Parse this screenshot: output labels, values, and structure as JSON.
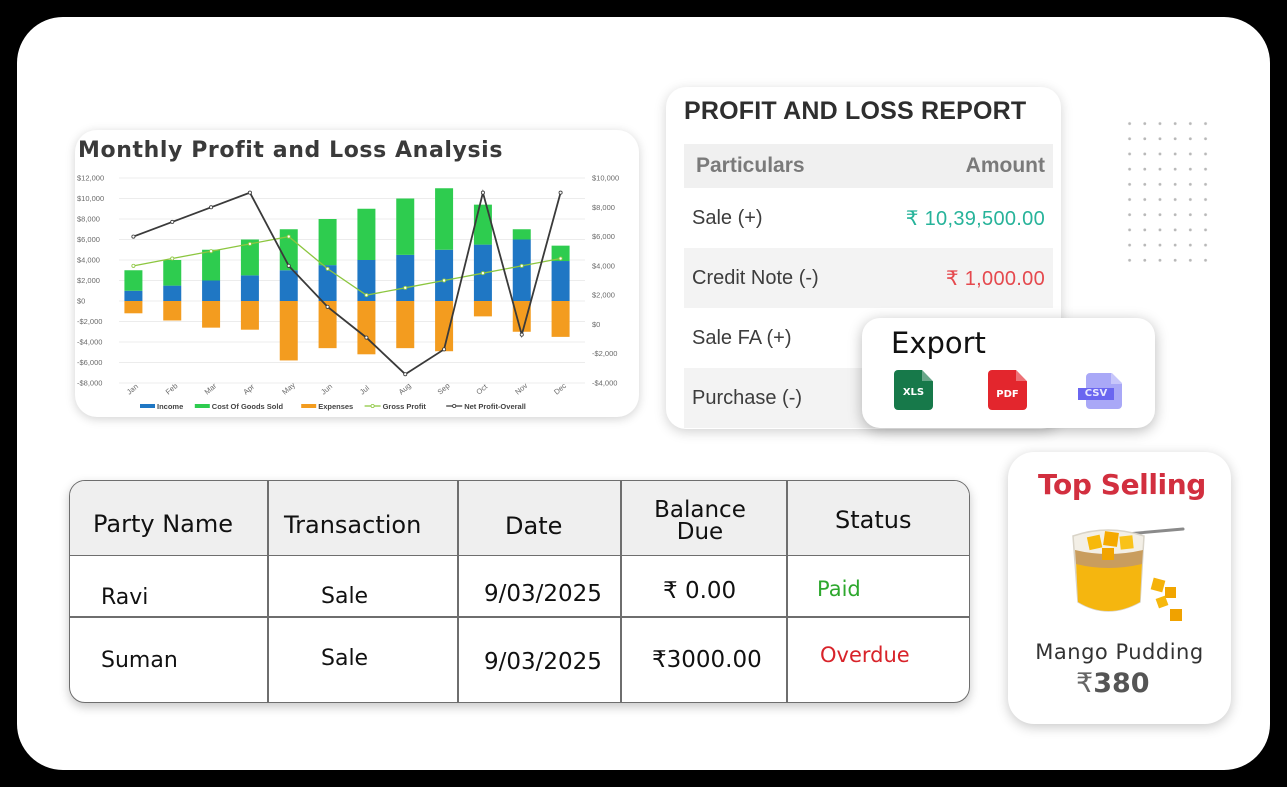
{
  "chart_card": {
    "title": "Monthly Profit and Loss Analysis"
  },
  "chart_data": {
    "type": "bar",
    "title": "Monthly Profit and Loss Analysis",
    "categories": [
      "Jan",
      "Feb",
      "Mar",
      "Apr",
      "May",
      "Jun",
      "Jul",
      "Aug",
      "Sep",
      "Oct",
      "Nov",
      "Dec"
    ],
    "stacked": true,
    "series": [
      {
        "name": "Income",
        "type": "bar",
        "axis": "left",
        "color": "#1f77c4",
        "values": [
          1000,
          1500,
          2000,
          2500,
          3000,
          3500,
          4000,
          4500,
          5000,
          5500,
          6000,
          3900
        ]
      },
      {
        "name": "Cost Of Goods Sold",
        "type": "bar",
        "axis": "left",
        "color": "#2ecc4f",
        "values": [
          2000,
          2500,
          3000,
          3500,
          4000,
          4500,
          5000,
          5500,
          6000,
          3900,
          1000,
          1500
        ]
      },
      {
        "name": "Expenses",
        "type": "bar",
        "axis": "left",
        "color": "#f39c1f",
        "values": [
          -1200,
          -1900,
          -2600,
          -2800,
          -5800,
          -4600,
          -5200,
          -4600,
          -4900,
          -1500,
          -3000,
          -3500
        ]
      },
      {
        "name": "Gross Profit",
        "type": "line",
        "axis": "right",
        "color": "#8cc63f",
        "values": [
          4000,
          4500,
          5000,
          5500,
          6000,
          3800,
          2000,
          2500,
          3000,
          3500,
          4000,
          4500
        ]
      },
      {
        "name": "Net Profit-Overall",
        "type": "line",
        "axis": "right",
        "color": "#3a3a3a",
        "values": [
          6000,
          7000,
          8000,
          9000,
          4000,
          1200,
          -900,
          -3400,
          -1700,
          9000,
          -700,
          9000
        ]
      }
    ],
    "left_axis": {
      "ticks": [
        "$12,000",
        "$10,000",
        "$8,000",
        "$6,000",
        "$4,000",
        "$2,000",
        "$0",
        "-$2,000",
        "-$4,000",
        "-$6,000",
        "-$8,000"
      ],
      "ylim": [
        -8000,
        12000
      ]
    },
    "right_axis": {
      "ticks": [
        "$10,000",
        "$8,000",
        "$6,000",
        "$4,000",
        "$2,000",
        "$0",
        "-$2,000",
        "-$4,000"
      ],
      "ylim": [
        -4000,
        10000
      ]
    },
    "grid": true,
    "legend_position": "bottom",
    "xlabel": "",
    "ylabel": ""
  },
  "pl_report": {
    "title": "PROFIT AND LOSS REPORT",
    "col_particulars": "Particulars",
    "col_amount": "Amount",
    "rows": [
      {
        "label": "Sale (+)",
        "amount": "₹ 10,39,500.00",
        "color": "#26b39a"
      },
      {
        "label": "Credit Note (-)",
        "amount": "₹ 1,000.00",
        "color": "#e5484d"
      },
      {
        "label": "Sale FA (+)",
        "amount": ""
      },
      {
        "label": "Purchase (-)",
        "amount": ""
      }
    ]
  },
  "export": {
    "title": "Export",
    "options": [
      {
        "label": "XLS",
        "color": "#17794a",
        "icon": "xls-file-icon"
      },
      {
        "label": "PDF",
        "color": "#e3262d",
        "icon": "pdf-file-icon"
      },
      {
        "label": "CSV",
        "color": "#a9a8f7",
        "icon": "csv-file-icon"
      }
    ]
  },
  "transactions": {
    "headers": [
      "Party Name",
      "Transaction",
      "Date",
      "Balance Due",
      "Status"
    ],
    "header_balance_line1": "Balance",
    "header_balance_line2": "Due",
    "rows": [
      {
        "party": "Ravi",
        "transaction": "Sale",
        "date": "9/03/2025",
        "balance": "₹ 0.00",
        "status": "Paid"
      },
      {
        "party": "Suman",
        "transaction": "Sale",
        "date": "9/03/2025",
        "balance": "₹3000.00",
        "status": "Overdue"
      }
    ]
  },
  "top_selling": {
    "title": "Top Selling",
    "product_name": "Mango Pudding",
    "currency": "₹",
    "price": "380"
  }
}
